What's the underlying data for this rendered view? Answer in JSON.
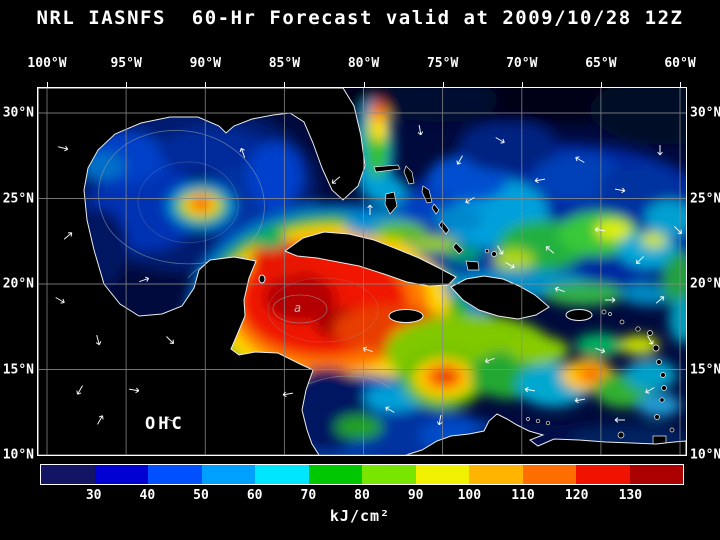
{
  "title": "NRL IASNFS  60-Hr Forecast valid at 2009/10/28 12Z",
  "map": {
    "region_label": "OHC",
    "annotation": "a",
    "lon_ticks": [
      "100°W",
      "95°W",
      "90°W",
      "85°W",
      "80°W",
      "75°W",
      "70°W",
      "65°W",
      "60°W"
    ],
    "lat_ticks": [
      "30°N",
      "25°N",
      "20°N",
      "15°N",
      "10°N"
    ]
  },
  "colorbar": {
    "unit": "kJ/cm²",
    "tick_labels": [
      "30",
      "40",
      "50",
      "60",
      "70",
      "80",
      "90",
      "100",
      "110",
      "120",
      "130"
    ],
    "segment_colors": [
      "#141464",
      "#0000d2",
      "#0050ff",
      "#00a0ff",
      "#00e6ff",
      "#00c800",
      "#78e600",
      "#f0f000",
      "#ffb400",
      "#ff6e00",
      "#f01400",
      "#aa0000"
    ]
  },
  "chart_data": {
    "type": "heatmap",
    "title": "NRL IASNFS 60-Hr Forecast valid at 2009/10/28 12Z",
    "quantity_label": "OHC",
    "unit": "kJ/cm²",
    "x_axis_ticks_deg_west": [
      100,
      95,
      90,
      85,
      80,
      75,
      70,
      65,
      60
    ],
    "y_axis_ticks_deg_north": [
      30,
      25,
      20,
      15,
      10
    ],
    "colorbar_tick_values": [
      30,
      40,
      50,
      60,
      70,
      80,
      90,
      100,
      110,
      120,
      130
    ]
  }
}
